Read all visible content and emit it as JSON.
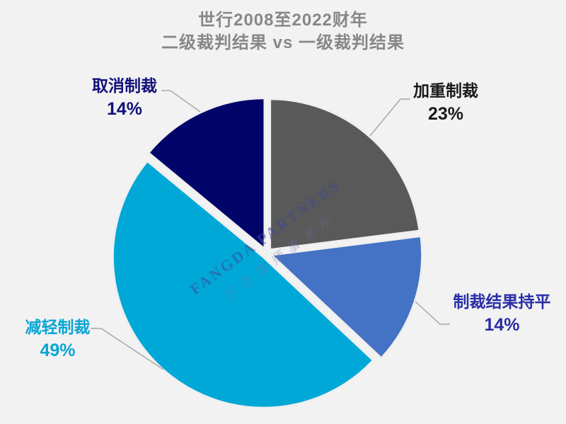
{
  "title": {
    "line1": "世行2008至2022财年",
    "line2": "二级裁判结果 vs 一级裁判结果"
  },
  "watermark": {
    "line1": "FANGDA PARTNERS",
    "line2": "方达律师事务所"
  },
  "chart_data": {
    "type": "pie",
    "title": "世行2008至2022财年 二级裁判结果 vs 一级裁判结果",
    "start_angle_deg_from_12_oclock": 0,
    "direction": "clockwise",
    "background_color": "#f2f2f2",
    "title_color": "#878787",
    "leader_line_color": "#a8a8a8",
    "slice_gap_color": "#efefef",
    "slices": [
      {
        "key": "aggravated",
        "label": "加重制裁",
        "value_pct": 23,
        "pct_label": "23%",
        "color": "#595959",
        "label_color": "#1a1a1a"
      },
      {
        "key": "unchanged",
        "label": "制裁结果持平",
        "value_pct": 14,
        "pct_label": "14%",
        "color": "#4472c4",
        "label_color": "#2a2fa5"
      },
      {
        "key": "reduced",
        "label": "减轻制裁",
        "value_pct": 49,
        "pct_label": "49%",
        "color": "#00a8d8",
        "label_color": "#0ba5d4"
      },
      {
        "key": "cancelled",
        "label": "取消制裁",
        "value_pct": 14,
        "pct_label": "14%",
        "color": "#010569",
        "label_color": "#131178"
      }
    ]
  }
}
